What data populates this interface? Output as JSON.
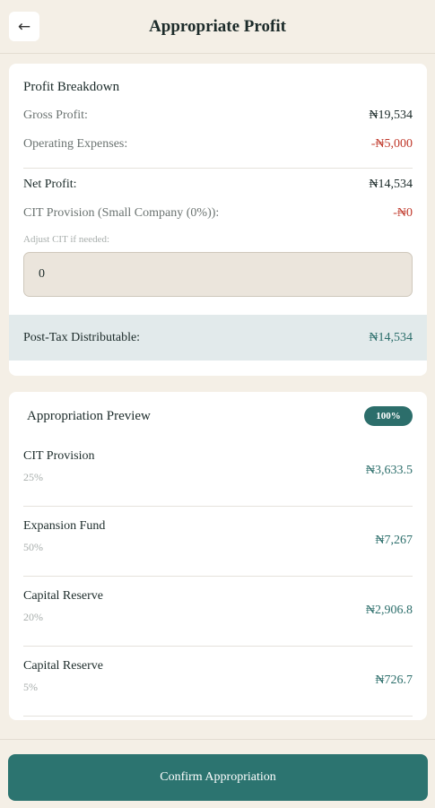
{
  "header": {
    "back_icon": "←",
    "title": "Appropriate Profit"
  },
  "breakdown": {
    "heading": "Profit Breakdown",
    "gross_label": "Gross Profit:",
    "gross_value": "₦19,534",
    "opex_label": "Operating Expenses:",
    "opex_value": "-₦5,000",
    "net_label": "Net Profit:",
    "net_value": "₦14,534",
    "cit_label": "CIT Provision (Small Company (0%)):",
    "cit_value": "-₦0",
    "adjust_label": "Adjust CIT if needed:",
    "adjust_value": "0",
    "post_tax_label": "Post-Tax Distributable:",
    "post_tax_value": "₦14,534"
  },
  "preview": {
    "heading": "Appropriation Preview",
    "badge": "100%",
    "items": [
      {
        "name": "CIT Provision",
        "pct": "25%",
        "amount": "₦3,633.5"
      },
      {
        "name": "Expansion Fund",
        "pct": "50%",
        "amount": "₦7,267"
      },
      {
        "name": "Capital Reserve",
        "pct": "20%",
        "amount": "₦2,906.8"
      },
      {
        "name": "Capital Reserve",
        "pct": "5%",
        "amount": "₦726.7"
      }
    ]
  },
  "footer": {
    "confirm_label": "Confirm Appropriation"
  },
  "colors": {
    "accent": "#2c7470",
    "negative": "#c0392b",
    "background": "#f4efe6"
  }
}
